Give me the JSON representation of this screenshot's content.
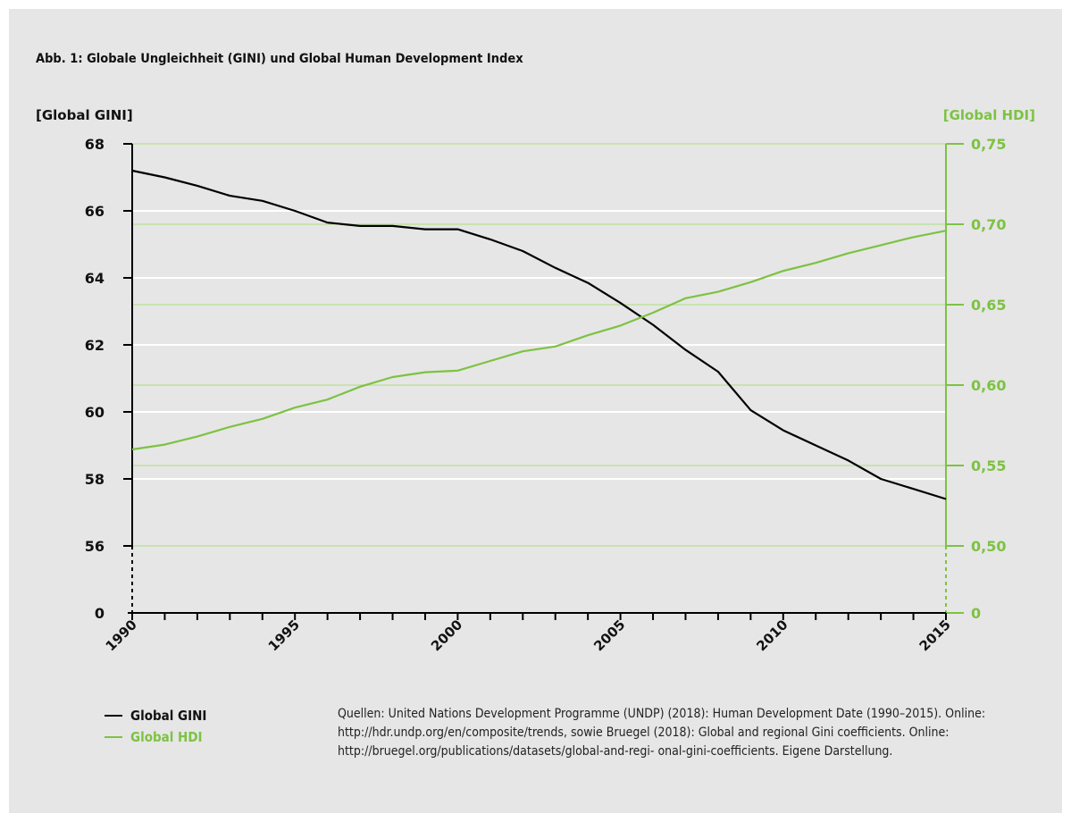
{
  "figure": {
    "title": "Abb. 1: Globale Ungleichheit (GINI) und Global Human Development Index",
    "source": "Quellen: United Nations Development Programme (UNDP) (2018): Human Development Date (1990–2015). Online: http://hdr.undp.org/en/composite/trends, sowie Bruegel (2018): Global and regional Gini coefficients. Online: http://bruegel.org/publications/datasets/global-and-regi- onal-gini-coefficients. Eigene Darstellung."
  },
  "colors": {
    "background": "#e6e6e6",
    "gini": "#000000",
    "hdi": "#7dc242",
    "hdi_grid": "#bfe19f",
    "grid": "#ffffff"
  },
  "chart_data": {
    "type": "line",
    "ylabel_left": "[Global GINI]",
    "ylabel_right": "[Global HDI]",
    "x": [
      1990,
      1991,
      1992,
      1993,
      1994,
      1995,
      1996,
      1997,
      1998,
      1999,
      2000,
      2001,
      2002,
      2003,
      2004,
      2005,
      2006,
      2007,
      2008,
      2009,
      2010,
      2011,
      2012,
      2013,
      2014,
      2015
    ],
    "x_tick_labels": [
      "1990",
      "1995",
      "2000",
      "2005",
      "2010",
      "2015"
    ],
    "y_left_ticks": [
      "68",
      "66",
      "64",
      "62",
      "60",
      "58",
      "56",
      "0"
    ],
    "y_right_ticks": [
      "0,75",
      "0,70",
      "0,65",
      "0,60",
      "0,55",
      "0,50",
      "0"
    ],
    "y_left_range": [
      56,
      68
    ],
    "y_right_range": [
      0.5,
      0.75
    ],
    "axis_break": "0",
    "series": [
      {
        "name": "Global GINI",
        "axis": "left",
        "values": [
          67.2,
          67.0,
          66.75,
          66.45,
          66.3,
          66.0,
          65.65,
          65.55,
          65.55,
          65.45,
          65.45,
          65.15,
          64.8,
          64.3,
          63.85,
          63.25,
          62.6,
          61.85,
          61.2,
          60.05,
          59.45,
          59.0,
          58.55,
          58.0,
          57.7,
          57.4
        ]
      },
      {
        "name": "Global HDI",
        "axis": "right",
        "values": [
          0.56,
          0.563,
          0.568,
          0.574,
          0.579,
          0.586,
          0.591,
          0.599,
          0.605,
          0.608,
          0.609,
          0.615,
          0.621,
          0.624,
          0.631,
          0.637,
          0.645,
          0.654,
          0.658,
          0.664,
          0.671,
          0.676,
          0.682,
          0.687,
          0.692,
          0.696
        ]
      }
    ],
    "grid": true,
    "legend_position": "bottom-left"
  }
}
